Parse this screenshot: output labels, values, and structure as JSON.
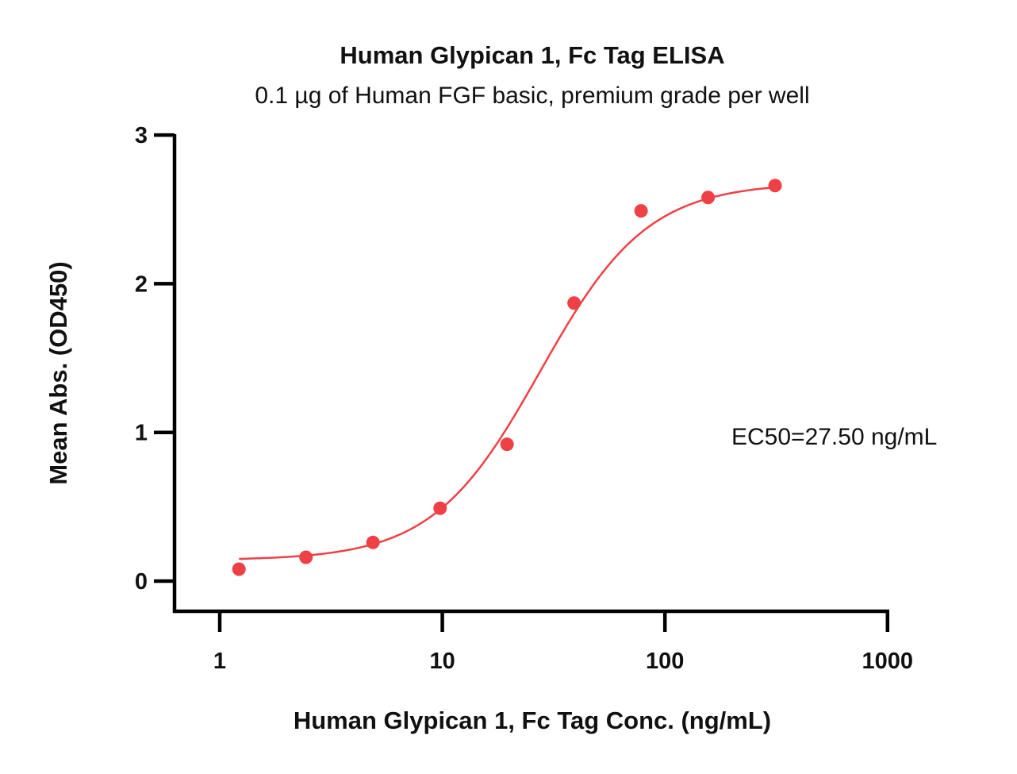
{
  "chart_data": {
    "type": "scatter",
    "title": "Human Glypican 1, Fc Tag ELISA",
    "subtitle": "0.1 µg of Human FGF basic, premium grade per well",
    "xlabel": "Human Glypican 1, Fc Tag Conc. (ng/mL)",
    "ylabel": "Mean Abs. (OD450)",
    "x_scale": "log",
    "xlim": [
      0.6,
      1000
    ],
    "ylim": [
      -0.2,
      3
    ],
    "x_ticks": [
      1,
      10,
      100,
      1000
    ],
    "x_tick_labels": [
      "1",
      "10",
      "100",
      "1000"
    ],
    "y_ticks": [
      0,
      1,
      2,
      3
    ],
    "y_tick_labels": [
      "0",
      "1",
      "2",
      "3"
    ],
    "grid": false,
    "colors": {
      "series": "#ef4046",
      "axis": "#000000"
    },
    "series": [
      {
        "x": [
          1.22,
          2.44,
          4.88,
          9.77,
          19.53,
          39.06,
          78.13,
          156.25,
          312.5
        ],
        "y": [
          0.08,
          0.16,
          0.26,
          0.49,
          0.92,
          1.87,
          2.49,
          2.58,
          2.66
        ],
        "fit": {
          "model": "4PL",
          "bottom": 0.14,
          "top": 2.68,
          "ec50": 27.5,
          "hill": 1.8
        }
      }
    ],
    "annotations": [
      {
        "text": "EC50=27.50 ng/mL"
      }
    ]
  }
}
